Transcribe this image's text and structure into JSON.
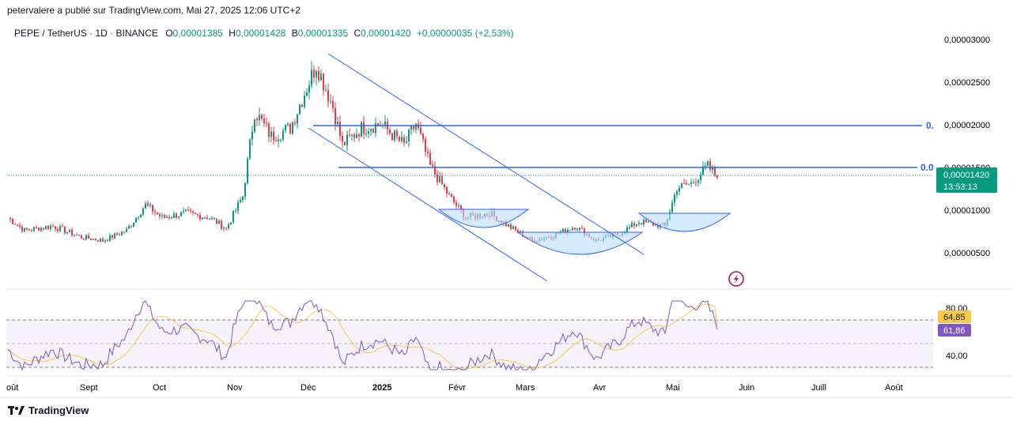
{
  "header": {
    "published_by": "petervalere a publié sur TradingView.com, Mai 27, 2025 12:06 UTC+2",
    "symbol": "PEPE / TetherUS · 1D · BINANCE",
    "o_label": "O",
    "o_value": "0,00001385",
    "h_label": "H",
    "h_value": "0,00001428",
    "b_label": "B",
    "b_value": "0,00001335",
    "c_label": "C",
    "c_value": "0,00001420",
    "change": "+0,00000035 (+2,53%)"
  },
  "price_axis": {
    "ticks": [
      {
        "v": 30,
        "label": "0,00003000"
      },
      {
        "v": 25,
        "label": "0,00002500"
      },
      {
        "v": 20,
        "label": "0,00002000"
      },
      {
        "v": 15,
        "label": "0,00001500"
      },
      {
        "v": 10,
        "label": "0,00001000"
      },
      {
        "v": 5,
        "label": "0,00000500"
      }
    ],
    "last_price": "0,00001420",
    "countdown": "13:53:13"
  },
  "level_labels": [
    "0.",
    "0.0"
  ],
  "rsi_axis": {
    "ticks": [
      {
        "v": 80,
        "label": "80,00"
      },
      {
        "v": 40,
        "label": "40,00"
      }
    ],
    "badge_ma": "64,85",
    "badge_rsi": "61,86"
  },
  "time_axis": [
    "oût",
    "Sept",
    "Oct",
    "Nov",
    "Déc",
    "2025",
    "Févr",
    "Mars",
    "Avr",
    "Mai",
    "Juin",
    "Juill",
    "Août"
  ],
  "footer": {
    "brand": "TradingView"
  },
  "colors": {
    "up": "#089981",
    "down": "#f23645",
    "line": "#2962ff",
    "rsi": "#7e57c2",
    "rsi_ma": "#f7c948",
    "last_price_bg": "#089981",
    "bowl": "#bbdefb"
  },
  "chart_data": [
    {
      "type": "candlestick",
      "title": "PEPE / TetherUS · 1D · BINANCE",
      "ylim": [
        5e-07,
        3.1e-05
      ],
      "x_range": [
        "2024-08-01",
        "2025-08-05"
      ],
      "series_close_approx": [
        {
          "date": "2024-08-01",
          "close": 9.5e-06
        },
        {
          "date": "2024-08-08",
          "close": 8e-06
        },
        {
          "date": "2024-08-20",
          "close": 8.5e-06
        },
        {
          "date": "2024-09-01",
          "close": 7.2e-06
        },
        {
          "date": "2024-09-10",
          "close": 6.8e-06
        },
        {
          "date": "2024-09-20",
          "close": 8e-06
        },
        {
          "date": "2024-09-28",
          "close": 1.1e-05
        },
        {
          "date": "2024-10-05",
          "close": 9.5e-06
        },
        {
          "date": "2024-10-15",
          "close": 1e-05
        },
        {
          "date": "2024-10-25",
          "close": 9.5e-06
        },
        {
          "date": "2024-11-01",
          "close": 8.2e-06
        },
        {
          "date": "2024-11-08",
          "close": 1.2e-05
        },
        {
          "date": "2024-11-13",
          "close": 2.2e-05
        },
        {
          "date": "2024-11-20",
          "close": 1.9e-05
        },
        {
          "date": "2024-11-28",
          "close": 2e-05
        },
        {
          "date": "2024-12-09",
          "close": 2.75e-05
        },
        {
          "date": "2024-12-16",
          "close": 2.25e-05
        },
        {
          "date": "2024-12-20",
          "close": 1.8e-05
        },
        {
          "date": "2024-12-28",
          "close": 2e-05
        },
        {
          "date": "2025-01-05",
          "close": 2.05e-05
        },
        {
          "date": "2025-01-15",
          "close": 1.8e-05
        },
        {
          "date": "2025-01-20",
          "close": 2.05e-05
        },
        {
          "date": "2025-01-26",
          "close": 1.55e-05
        },
        {
          "date": "2025-02-03",
          "close": 1.2e-05
        },
        {
          "date": "2025-02-10",
          "close": 9.5e-06
        },
        {
          "date": "2025-02-20",
          "close": 1e-05
        },
        {
          "date": "2025-02-28",
          "close": 8.5e-06
        },
        {
          "date": "2025-03-10",
          "close": 6.8e-06
        },
        {
          "date": "2025-03-20",
          "close": 7.5e-06
        },
        {
          "date": "2025-03-28",
          "close": 8.5e-06
        },
        {
          "date": "2025-04-06",
          "close": 6.8e-06
        },
        {
          "date": "2025-04-15",
          "close": 7.5e-06
        },
        {
          "date": "2025-04-24",
          "close": 9e-06
        },
        {
          "date": "2025-05-05",
          "close": 8.5e-06
        },
        {
          "date": "2025-05-10",
          "close": 1.3e-05
        },
        {
          "date": "2025-05-16",
          "close": 1.35e-05
        },
        {
          "date": "2025-05-23",
          "close": 1.55e-05
        },
        {
          "date": "2025-05-27",
          "close": 1.42e-05
        }
      ],
      "horizontal_levels": [
        2e-05,
        1.5e-05
      ],
      "patterns": [
        "descending channel",
        "rounded bottoms"
      ]
    },
    {
      "type": "line",
      "name": "RSI",
      "ylim": [
        20,
        90
      ],
      "bands": [
        70,
        50,
        30
      ],
      "last_rsi": 61.86,
      "last_ma": 64.85
    }
  ]
}
